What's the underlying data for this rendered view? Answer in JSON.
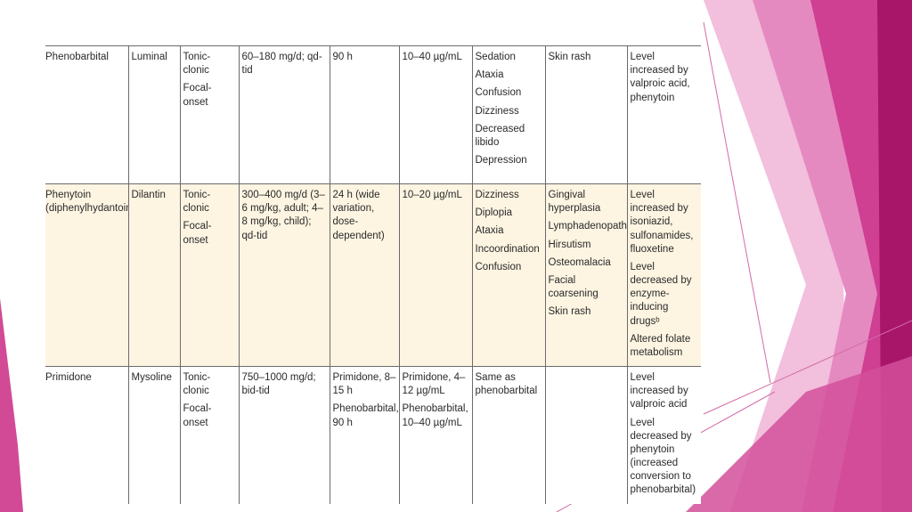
{
  "rows": [
    {
      "generic": "Phenobarbital",
      "brand": "Luminal",
      "seizure": [
        "Tonic-clonic",
        "Focal-onset"
      ],
      "dose": "60–180 mg/d; qd-tid",
      "half_life": "90 h",
      "level": "10–40 µg/mL",
      "neuro_effects": [
        "Sedation",
        "Ataxia",
        "Confusion",
        "Dizziness",
        "Decreased libido",
        "Depression"
      ],
      "systemic_effects": [
        "Skin rash"
      ],
      "interactions": [
        "Level increased by valproic acid, phenytoin"
      ]
    },
    {
      "generic": "Phenytoin (diphenylhydantoin)",
      "brand": "Dilantin",
      "seizure": [
        "Tonic-clonic",
        "Focal-onset"
      ],
      "dose": "300–400 mg/d (3–6 mg/kg, adult; 4–8 mg/kg, child); qd-tid",
      "half_life": "24 h (wide variation, dose-dependent)",
      "level": "10–20 µg/mL",
      "neuro_effects": [
        "Dizziness",
        "Diplopia",
        "Ataxia",
        "Incoordination",
        "Confusion"
      ],
      "systemic_effects": [
        "Gingival hyperplasia",
        "Lymphadenopathy",
        "Hirsutism",
        "Osteomalacia",
        "Facial coarsening",
        "Skin rash"
      ],
      "interactions": [
        "Level increased by isoniazid, sulfonamides, fluoxetine",
        "Level decreased by enzyme-inducing drugsᵇ",
        "Altered folate metabolism"
      ]
    },
    {
      "generic": "Primidone",
      "brand": "Mysoline",
      "seizure": [
        "Tonic-clonic",
        "Focal-onset"
      ],
      "dose": "750–1000 mg/d; bid-tid",
      "half_life": [
        "Primidone, 8–15 h",
        "Phenobarbital, 90 h"
      ],
      "level": [
        "Primidone, 4–12 µg/mL",
        "Phenobarbital, 10–40 µg/mL"
      ],
      "neuro_effects": [
        "Same as phenobarbital"
      ],
      "systemic_effects": [],
      "interactions": [
        "Level increased by valproic acid",
        "Level decreased by phenytoin (increased conversion to phenobarbital)"
      ]
    }
  ],
  "colors": {
    "accent_dark": "#b0176f",
    "accent_mid": "#d63f96",
    "accent_light": "#e98ac0",
    "accent_pale": "#f4c4de",
    "row_highlight": "#fdf5e2"
  }
}
